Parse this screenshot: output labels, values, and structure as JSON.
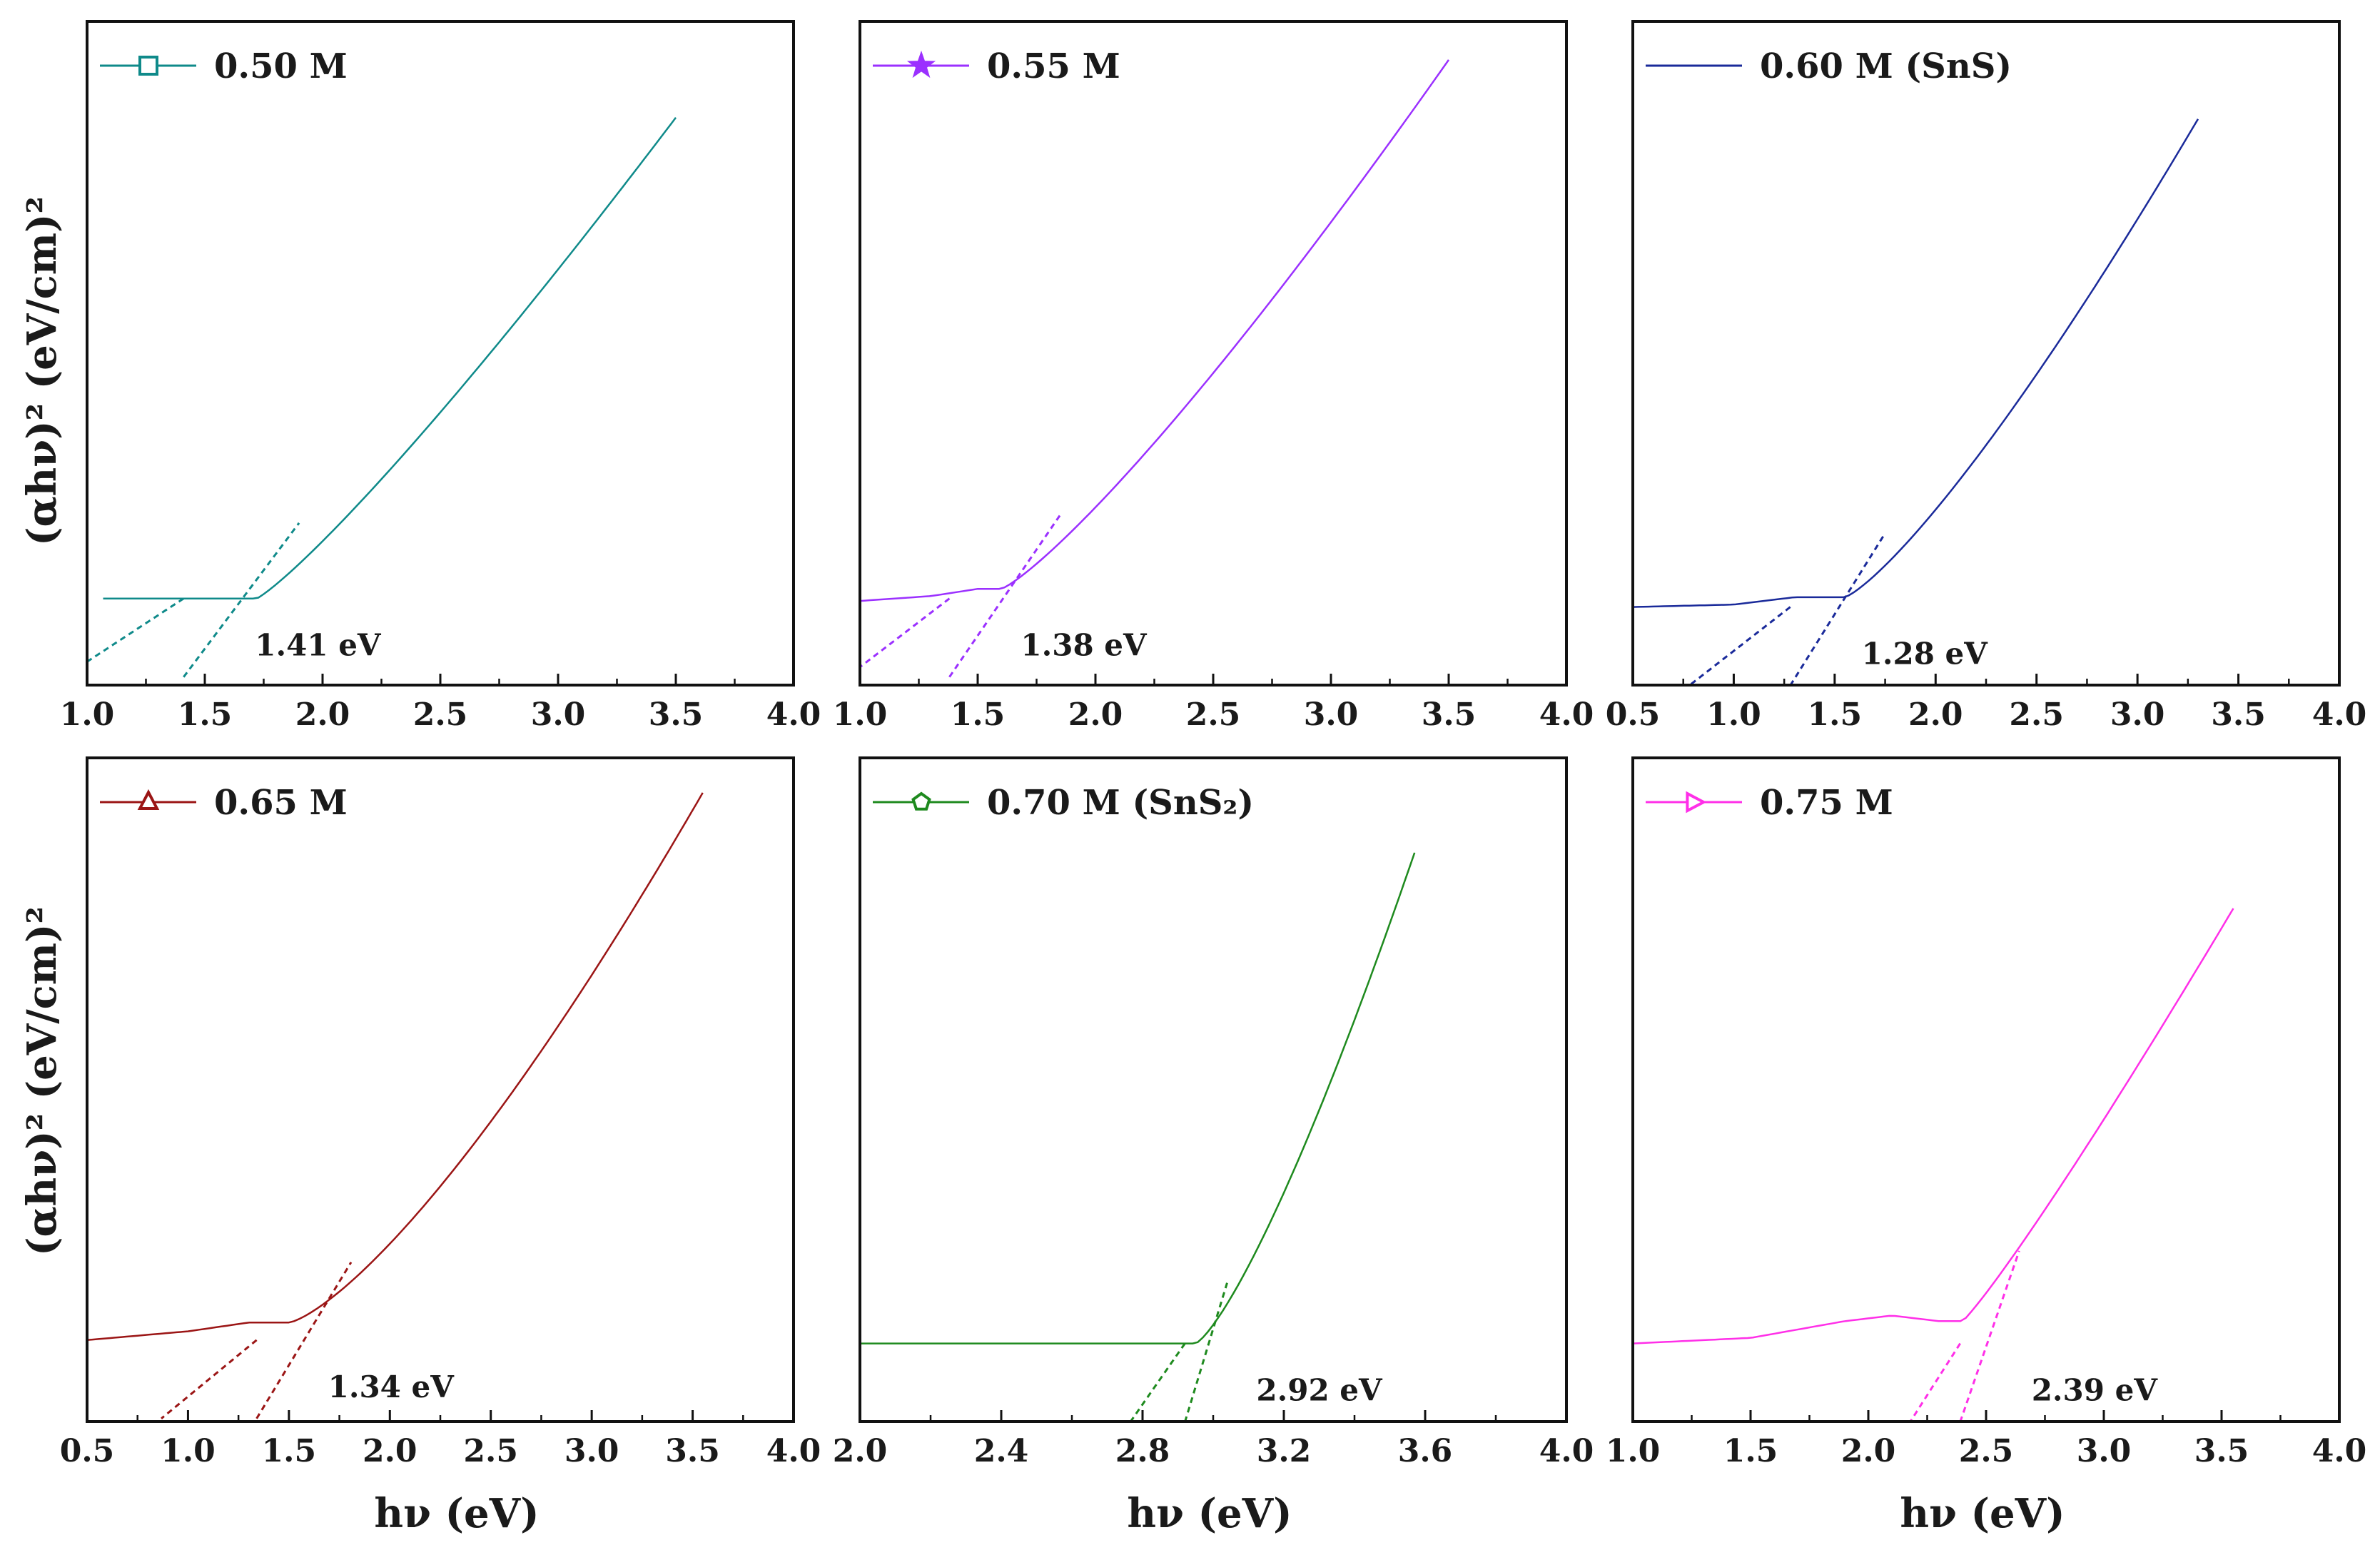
{
  "figure": {
    "description_free": true
  },
  "axis_labels": {
    "ylabel": "(αhν)² (eV/cm)²",
    "xlabel": "hν (eV)"
  },
  "chart_data": [
    {
      "type": "scatter",
      "legend": "0.50 M",
      "color": "#0f8a8a",
      "marker": "square",
      "xlim": [
        1.0,
        4.0
      ],
      "xticks": [
        "1.0",
        "1.5",
        "2.0",
        "2.5",
        "3.0",
        "3.5",
        "4.0"
      ],
      "ylim": [
        -0.18,
        1.2
      ],
      "onset": 1.72,
      "x_end": 3.5,
      "y_end": 1.0,
      "curve_power": 1.15,
      "tail": [],
      "bandgap": 1.41,
      "bandgap_label": "1.41 eV"
    },
    {
      "type": "scatter",
      "legend": "0.55 M",
      "color": "#9b30ff",
      "marker": "star",
      "xlim": [
        1.0,
        4.0
      ],
      "xticks": [
        "1.0",
        "1.5",
        "2.0",
        "2.5",
        "3.0",
        "3.5",
        "4.0"
      ],
      "ylim": [
        -0.18,
        1.2
      ],
      "onset": 1.6,
      "x_end": 3.5,
      "y_end": 1.12,
      "curve_power": 1.2,
      "tail": [
        [
          1.0,
          -0.005
        ],
        [
          1.3,
          0.005
        ],
        [
          1.5,
          0.02
        ]
      ],
      "bandgap": 1.38,
      "bandgap_label": "1.38 eV"
    },
    {
      "type": "scatter",
      "legend": "0.60 M (SnS)",
      "color": "#1a2a9a",
      "marker": "circle",
      "xlim": [
        0.5,
        4.0
      ],
      "xticks": [
        "0.5",
        "1.0",
        "1.5",
        "2.0",
        "2.5",
        "3.0",
        "3.5",
        "4.0"
      ],
      "ylim": [
        -0.16,
        1.2
      ],
      "onset": 1.55,
      "x_end": 3.3,
      "y_end": 1.0,
      "curve_power": 1.25,
      "tail": [
        [
          0.5,
          0.0
        ],
        [
          1.0,
          0.005
        ],
        [
          1.3,
          0.02
        ]
      ],
      "bandgap": 1.28,
      "bandgap_label": "1.28 eV"
    },
    {
      "type": "scatter",
      "legend": "0.65 M",
      "color": "#9b1515",
      "marker": "triangle",
      "xlim": [
        0.5,
        4.0
      ],
      "xticks": [
        "0.5",
        "1.0",
        "1.5",
        "2.0",
        "2.5",
        "3.0",
        "3.5",
        "4.0"
      ],
      "ylim": [
        -0.14,
        1.0
      ],
      "onset": 1.5,
      "x_end": 3.55,
      "y_end": 0.94,
      "curve_power": 1.35,
      "tail": [
        [
          0.5,
          0.0
        ],
        [
          1.0,
          0.015
        ],
        [
          1.3,
          0.03
        ]
      ],
      "bandgap": 1.34,
      "bandgap_label": "1.34 eV"
    },
    {
      "type": "scatter",
      "legend": "0.70 M (SnS₂)",
      "color": "#1e8a1e",
      "marker": "pentagon",
      "xlim": [
        2.0,
        4.0
      ],
      "xticks": [
        "2.0",
        "2.4",
        "2.8",
        "3.2",
        "3.6",
        "4.0"
      ],
      "ylim": [
        -0.14,
        1.05
      ],
      "onset": 2.95,
      "x_end": 3.57,
      "y_end": 0.88,
      "curve_power": 1.3,
      "tail": [
        [
          2.0,
          0.0
        ],
        [
          2.7,
          0.0
        ]
      ],
      "bandgap": 2.92,
      "bandgap_label": "2.92 eV"
    },
    {
      "type": "scatter",
      "legend": "0.75 M",
      "color": "#ff2fe8",
      "marker": "triangle-right",
      "xlim": [
        1.0,
        4.0
      ],
      "xticks": [
        "1.0",
        "1.5",
        "2.0",
        "2.5",
        "3.0",
        "3.5",
        "4.0"
      ],
      "ylim": [
        -0.14,
        1.05
      ],
      "onset": 2.4,
      "x_end": 3.55,
      "y_end": 0.78,
      "curve_power": 1.1,
      "tail": [
        [
          1.0,
          0.0
        ],
        [
          1.5,
          0.01
        ],
        [
          1.9,
          0.04
        ],
        [
          2.1,
          0.05
        ],
        [
          2.3,
          0.04
        ]
      ],
      "bandgap": 2.39,
      "bandgap_label": "2.39 eV"
    }
  ]
}
